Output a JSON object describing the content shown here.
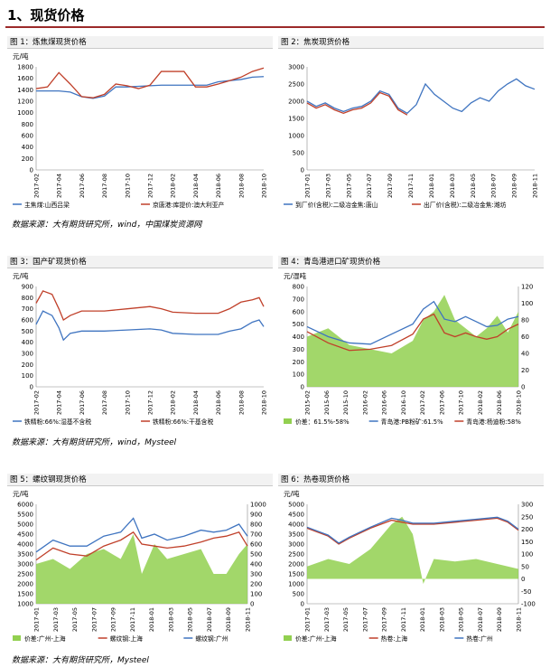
{
  "section_title": "1、现货价格",
  "colors": {
    "blue": "#3f74c0",
    "red": "#c0402a",
    "green": "#92d050",
    "rule": "#9c2a2a"
  },
  "sources": {
    "s1": "数据来源：大有期货研究所，wind，中国煤炭资源网",
    "s2": "数据来源：大有期货研究所，wind，Mysteel",
    "s3": "数据来源：大有期货研究所，Mysteel"
  },
  "chart_data": [
    {
      "title": "图 1：炼焦煤现货价格",
      "type": "line",
      "unit_label": "元/吨",
      "yticks": [
        "0",
        "200",
        "400",
        "600",
        "800",
        "1000",
        "1200",
        "1400",
        "1600",
        "1800"
      ],
      "ylim": [
        0,
        1800
      ],
      "xticks": [
        "2017-02",
        "2017-04",
        "2017-06",
        "2017-08",
        "2017-10",
        "2017-12",
        "2018-02",
        "2018-04",
        "2018-06",
        "2018-08",
        "2018-10"
      ],
      "series": [
        {
          "name": "主焦煤:山西吕梁",
          "color": "blue",
          "x": [
            0,
            0.05,
            0.1,
            0.15,
            0.2,
            0.25,
            0.3,
            0.35,
            0.4,
            0.45,
            0.5,
            0.55,
            0.6,
            0.65,
            0.7,
            0.75,
            0.8,
            0.85,
            0.9,
            0.95,
            1
          ],
          "values": [
            1380,
            1380,
            1380,
            1360,
            1280,
            1250,
            1290,
            1450,
            1450,
            1460,
            1470,
            1480,
            1480,
            1480,
            1480,
            1480,
            1540,
            1560,
            1580,
            1620,
            1630
          ]
        },
        {
          "name": "京唐港:库提价:澳大利亚产",
          "color": "red",
          "x": [
            0,
            0.05,
            0.1,
            0.15,
            0.2,
            0.25,
            0.3,
            0.35,
            0.4,
            0.45,
            0.5,
            0.55,
            0.6,
            0.65,
            0.7,
            0.75,
            0.8,
            0.85,
            0.9,
            0.95,
            1
          ],
          "values": [
            1420,
            1450,
            1700,
            1500,
            1280,
            1260,
            1320,
            1500,
            1470,
            1420,
            1480,
            1720,
            1720,
            1720,
            1450,
            1450,
            1500,
            1560,
            1620,
            1720,
            1780
          ]
        }
      ]
    },
    {
      "title": "图 2：焦炭现货价格",
      "type": "line",
      "unit_label": "",
      "yticks": [
        "0",
        "500",
        "1000",
        "1500",
        "2000",
        "2500",
        "3000"
      ],
      "ylim": [
        0,
        3000
      ],
      "xticks": [
        "2017-01",
        "2017-03",
        "2017-05",
        "2017-07",
        "2017-09",
        "2017-11",
        "2018-01",
        "2018-03",
        "2018-05",
        "2018-07",
        "2018-09",
        "2018-11"
      ],
      "series": [
        {
          "name": "到厂价(含税):二级冶金焦:唐山",
          "color": "blue",
          "x": [
            0,
            0.04,
            0.08,
            0.12,
            0.16,
            0.2,
            0.24,
            0.28,
            0.32,
            0.36,
            0.4,
            0.44,
            0.48,
            0.52,
            0.56,
            0.6,
            0.64,
            0.68,
            0.72,
            0.76,
            0.8,
            0.84,
            0.88,
            0.92,
            0.96,
            1
          ],
          "values": [
            2000,
            1850,
            1950,
            1800,
            1700,
            1800,
            1850,
            2000,
            2300,
            2200,
            1800,
            1650,
            1900,
            2500,
            2200,
            2000,
            1800,
            1700,
            1950,
            2100,
            2000,
            2300,
            2500,
            2650,
            2450,
            2350
          ]
        },
        {
          "name": "出厂价(含税):二级冶金焦:潍坊",
          "color": "red",
          "x": [
            0,
            0.04,
            0.08,
            0.12,
            0.16,
            0.2,
            0.24,
            0.28,
            0.32,
            0.36,
            0.4,
            0.44
          ],
          "values": [
            1950,
            1800,
            1900,
            1750,
            1650,
            1750,
            1800,
            1950,
            2250,
            2150,
            1750,
            1600
          ]
        }
      ]
    },
    {
      "title": "图 3：国产矿现货价格",
      "type": "line",
      "unit_label": "元/吨",
      "yticks": [
        "0",
        "100",
        "200",
        "300",
        "400",
        "500",
        "600",
        "700",
        "800",
        "900"
      ],
      "ylim": [
        0,
        900
      ],
      "xticks": [
        "2017-02",
        "2017-04",
        "2017-06",
        "2017-08",
        "2017-10",
        "2017-12",
        "2018-02",
        "2018-04",
        "2018-06",
        "2018-08",
        "2018-10"
      ],
      "series": [
        {
          "name": "铁精粉:66%:湿基不含税",
          "color": "blue",
          "x": [
            0,
            0.03,
            0.07,
            0.1,
            0.12,
            0.15,
            0.2,
            0.3,
            0.4,
            0.5,
            0.55,
            0.6,
            0.7,
            0.8,
            0.85,
            0.9,
            0.95,
            0.98,
            1
          ],
          "values": [
            560,
            680,
            640,
            530,
            420,
            480,
            500,
            500,
            510,
            520,
            510,
            480,
            470,
            470,
            500,
            520,
            580,
            600,
            540
          ]
        },
        {
          "name": "铁精粉:66%:干基含税",
          "color": "red",
          "x": [
            0,
            0.03,
            0.07,
            0.1,
            0.12,
            0.15,
            0.2,
            0.3,
            0.4,
            0.5,
            0.55,
            0.6,
            0.7,
            0.8,
            0.85,
            0.9,
            0.95,
            0.98,
            1
          ],
          "values": [
            750,
            860,
            830,
            700,
            600,
            640,
            680,
            680,
            700,
            720,
            700,
            670,
            660,
            660,
            700,
            760,
            780,
            800,
            720
          ]
        }
      ]
    },
    {
      "title": "图 4：青岛港进口矿现货价格",
      "type": "line",
      "unit_label": "元/湿吨",
      "yticks": [
        "0",
        "100",
        "200",
        "300",
        "400",
        "500",
        "600",
        "700",
        "800"
      ],
      "ylim": [
        0,
        800
      ],
      "y2ticks": [
        "0",
        "20",
        "40",
        "60",
        "80",
        "100",
        "120"
      ],
      "y2lim": [
        0,
        120
      ],
      "xticks": [
        "2015-02",
        "2015-06",
        "2015-10",
        "2016-02",
        "2016-06",
        "2016-10",
        "2017-02",
        "2017-06",
        "2017-10",
        "2018-02",
        "2018-06",
        "2018-10"
      ],
      "series": [
        {
          "name": "价差：61.5%-58%",
          "color": "green",
          "axis": "right",
          "x": [
            0,
            0.1,
            0.2,
            0.3,
            0.4,
            0.5,
            0.55,
            0.6,
            0.65,
            0.7,
            0.75,
            0.8,
            0.85,
            0.9,
            0.95,
            1
          ],
          "values": [
            60,
            70,
            50,
            45,
            40,
            55,
            80,
            90,
            110,
            80,
            70,
            60,
            70,
            85,
            65,
            90
          ]
        },
        {
          "name": "青岛港:PB粉矿:61.5%",
          "color": "blue",
          "axis": "left",
          "x": [
            0,
            0.1,
            0.2,
            0.3,
            0.4,
            0.5,
            0.55,
            0.6,
            0.65,
            0.7,
            0.75,
            0.8,
            0.85,
            0.9,
            0.95,
            1
          ],
          "values": [
            480,
            400,
            350,
            340,
            420,
            500,
            620,
            680,
            540,
            520,
            560,
            520,
            480,
            490,
            540,
            560
          ]
        },
        {
          "name": "青岛港:杨迪粉:58%",
          "color": "red",
          "axis": "left",
          "x": [
            0,
            0.1,
            0.2,
            0.3,
            0.4,
            0.5,
            0.55,
            0.6,
            0.65,
            0.7,
            0.75,
            0.8,
            0.85,
            0.9,
            0.95,
            1
          ],
          "values": [
            440,
            350,
            290,
            300,
            330,
            420,
            540,
            580,
            430,
            400,
            430,
            400,
            380,
            400,
            460,
            500
          ]
        }
      ]
    },
    {
      "title": "图 5：螺纹钢现货价格",
      "type": "line",
      "unit_label": "元/吨",
      "yticks": [
        "1000",
        "1500",
        "2000",
        "2500",
        "3000",
        "3500",
        "4000",
        "4500",
        "5000",
        "5500",
        "6000"
      ],
      "ylim": [
        1000,
        6000
      ],
      "y2ticks": [
        "0",
        "100",
        "200",
        "300",
        "400",
        "500",
        "600",
        "700",
        "800",
        "900",
        "1000"
      ],
      "y2lim": [
        0,
        1000
      ],
      "xticks": [
        "2017-01",
        "2017-03",
        "2017-05",
        "2017-07",
        "2017-09",
        "2017-11",
        "2018-01",
        "2018-03",
        "2018-05",
        "2018-07",
        "2018-09",
        "2018-11"
      ],
      "series": [
        {
          "name": "价差:广州-上海",
          "color": "green",
          "axis": "right",
          "x": [
            0,
            0.08,
            0.16,
            0.24,
            0.32,
            0.4,
            0.46,
            0.5,
            0.56,
            0.62,
            0.7,
            0.78,
            0.84,
            0.9,
            0.96,
            1
          ],
          "values": [
            400,
            450,
            350,
            500,
            550,
            450,
            700,
            300,
            600,
            450,
            500,
            550,
            300,
            300,
            500,
            600
          ]
        },
        {
          "name": "螺纹钢:上海",
          "color": "red",
          "axis": "left",
          "x": [
            0,
            0.08,
            0.16,
            0.24,
            0.32,
            0.4,
            0.46,
            0.5,
            0.56,
            0.62,
            0.7,
            0.78,
            0.84,
            0.9,
            0.96,
            1
          ],
          "values": [
            3200,
            3800,
            3500,
            3400,
            3900,
            4200,
            4600,
            4000,
            3900,
            3800,
            3900,
            4100,
            4300,
            4400,
            4600,
            3900
          ]
        },
        {
          "name": "螺纹钢:广州",
          "color": "blue",
          "axis": "left",
          "x": [
            0,
            0.08,
            0.16,
            0.24,
            0.32,
            0.4,
            0.46,
            0.5,
            0.56,
            0.62,
            0.7,
            0.78,
            0.84,
            0.9,
            0.96,
            1
          ],
          "values": [
            3600,
            4200,
            3900,
            3900,
            4400,
            4600,
            5300,
            4300,
            4500,
            4200,
            4400,
            4700,
            4600,
            4700,
            5000,
            4400
          ]
        }
      ]
    },
    {
      "title": "图 6：热卷现货价格",
      "type": "line",
      "unit_label": "元/吨",
      "yticks": [
        "0",
        "500",
        "1000",
        "1500",
        "2000",
        "2500",
        "3000",
        "3500",
        "4000",
        "4500",
        "5000"
      ],
      "ylim": [
        0,
        5000
      ],
      "y2ticks": [
        "-100",
        "-50",
        "0",
        "50",
        "100",
        "150",
        "200",
        "250",
        "300"
      ],
      "y2lim": [
        -100,
        300
      ],
      "xticks": [
        "2017-01",
        "2017-03",
        "2017-05",
        "2017-07",
        "2017-09",
        "2017-11",
        "2018-01",
        "2018-03",
        "2018-05",
        "2018-07",
        "2018-09",
        "2018-11"
      ],
      "series": [
        {
          "name": "价差:广州-上海",
          "color": "green",
          "axis": "right",
          "x": [
            0,
            0.1,
            0.2,
            0.3,
            0.4,
            0.45,
            0.5,
            0.55,
            0.6,
            0.7,
            0.8,
            0.9,
            1
          ],
          "values": [
            50,
            80,
            60,
            120,
            220,
            250,
            180,
            -20,
            80,
            70,
            80,
            60,
            40
          ]
        },
        {
          "name": "热卷:上海",
          "color": "red",
          "axis": "left",
          "x": [
            0,
            0.05,
            0.1,
            0.15,
            0.2,
            0.3,
            0.4,
            0.45,
            0.5,
            0.6,
            0.7,
            0.8,
            0.9,
            0.95,
            1
          ],
          "values": [
            3800,
            3600,
            3400,
            3000,
            3300,
            3800,
            4200,
            4100,
            4000,
            4000,
            4100,
            4200,
            4300,
            4100,
            3700
          ]
        },
        {
          "name": "热卷:广州",
          "color": "blue",
          "axis": "left",
          "x": [
            0,
            0.05,
            0.1,
            0.15,
            0.2,
            0.3,
            0.4,
            0.45,
            0.5,
            0.6,
            0.7,
            0.8,
            0.9,
            0.95,
            1
          ],
          "values": [
            3850,
            3650,
            3450,
            3050,
            3350,
            3850,
            4300,
            4200,
            4050,
            4050,
            4150,
            4250,
            4350,
            4150,
            3750
          ]
        }
      ]
    }
  ]
}
